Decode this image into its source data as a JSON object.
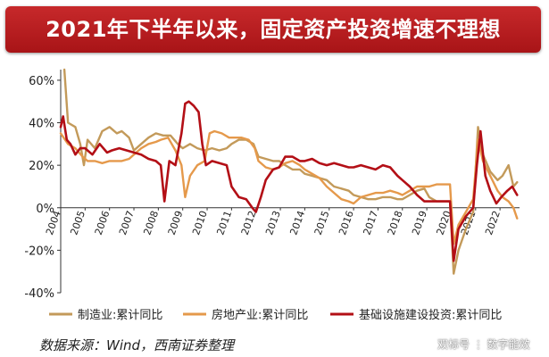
{
  "title": "2021年下半年以来，固定资产投资增速不理想",
  "source": "数据来源：Wind，西南证券整理",
  "watermark": "双标号 ⋮ 数字能效",
  "colors": {
    "title_bg": "#b81c1f",
    "manufacturing": "#c39a5a",
    "real_estate": "#e5994b",
    "infrastructure": "#b30f16"
  },
  "chart_data": {
    "type": "line",
    "title": "",
    "xlabel": "",
    "ylabel": "",
    "y_ticks": [
      "-40%",
      "-20%",
      "0%",
      "20%",
      "40%",
      "60%"
    ],
    "ylim": [
      -40,
      65
    ],
    "x_tick_labels": [
      "2004",
      "2005",
      "2006",
      "2007",
      "2008",
      "2009",
      "2010",
      "2011",
      "2012",
      "2013",
      "2014",
      "2015",
      "2016",
      "2017",
      "2018",
      "2019",
      "2020",
      "2021",
      "2022"
    ],
    "xlim": [
      2004,
      2022.8
    ],
    "grid": false,
    "legend_position": "bottom",
    "series": [
      {
        "name": "制造业:累计同比",
        "color": "#c39a5a",
        "points": [
          [
            2004.15,
            65
          ],
          [
            2004.3,
            40
          ],
          [
            2004.6,
            38
          ],
          [
            2004.8,
            30
          ],
          [
            2004.95,
            20
          ],
          [
            2005.1,
            32
          ],
          [
            2005.4,
            28
          ],
          [
            2005.7,
            36
          ],
          [
            2006.0,
            38
          ],
          [
            2006.3,
            35
          ],
          [
            2006.5,
            36
          ],
          [
            2006.8,
            33
          ],
          [
            2007.0,
            27
          ],
          [
            2007.3,
            30
          ],
          [
            2007.6,
            33
          ],
          [
            2007.9,
            35
          ],
          [
            2008.2,
            34
          ],
          [
            2008.5,
            34
          ],
          [
            2008.8,
            30
          ],
          [
            2009.0,
            28
          ],
          [
            2009.3,
            30
          ],
          [
            2009.6,
            28
          ],
          [
            2009.9,
            27
          ],
          [
            2010.2,
            28
          ],
          [
            2010.5,
            27
          ],
          [
            2010.8,
            28
          ],
          [
            2011.0,
            30
          ],
          [
            2011.3,
            32
          ],
          [
            2011.6,
            32
          ],
          [
            2011.9,
            30
          ],
          [
            2012.1,
            24
          ],
          [
            2012.4,
            23
          ],
          [
            2012.7,
            22
          ],
          [
            2012.95,
            22
          ],
          [
            2013.2,
            20
          ],
          [
            2013.5,
            18
          ],
          [
            2013.8,
            18
          ],
          [
            2014.0,
            16
          ],
          [
            2014.3,
            15
          ],
          [
            2014.6,
            14
          ],
          [
            2014.9,
            13
          ],
          [
            2015.2,
            10
          ],
          [
            2015.5,
            9
          ],
          [
            2015.8,
            8
          ],
          [
            2016.0,
            6
          ],
          [
            2016.3,
            5
          ],
          [
            2016.6,
            4
          ],
          [
            2016.9,
            4
          ],
          [
            2017.2,
            5
          ],
          [
            2017.5,
            5
          ],
          [
            2017.8,
            4
          ],
          [
            2018.0,
            4
          ],
          [
            2018.3,
            6
          ],
          [
            2018.6,
            8
          ],
          [
            2018.9,
            9
          ],
          [
            2019.1,
            5
          ],
          [
            2019.4,
            3
          ],
          [
            2019.7,
            3
          ],
          [
            2019.95,
            3
          ],
          [
            2020.1,
            -31
          ],
          [
            2020.3,
            -20
          ],
          [
            2020.6,
            -10
          ],
          [
            2020.9,
            -2
          ],
          [
            2021.1,
            38
          ],
          [
            2021.3,
            25
          ],
          [
            2021.6,
            17
          ],
          [
            2021.9,
            13
          ],
          [
            2022.1,
            15
          ],
          [
            2022.35,
            20
          ],
          [
            2022.55,
            10
          ],
          [
            2022.7,
            12
          ]
        ]
      },
      {
        "name": "房地产业:累计同比",
        "color": "#e5994b",
        "points": [
          [
            2004.0,
            35
          ],
          [
            2004.3,
            30
          ],
          [
            2004.6,
            28
          ],
          [
            2004.9,
            24
          ],
          [
            2005.1,
            22
          ],
          [
            2005.4,
            22
          ],
          [
            2005.7,
            21
          ],
          [
            2006.0,
            22
          ],
          [
            2006.3,
            22
          ],
          [
            2006.5,
            22
          ],
          [
            2006.8,
            23
          ],
          [
            2007.0,
            25
          ],
          [
            2007.3,
            28
          ],
          [
            2007.6,
            30
          ],
          [
            2007.9,
            31
          ],
          [
            2008.1,
            32
          ],
          [
            2008.4,
            33
          ],
          [
            2008.7,
            27
          ],
          [
            2008.95,
            20
          ],
          [
            2009.1,
            5
          ],
          [
            2009.3,
            15
          ],
          [
            2009.6,
            20
          ],
          [
            2009.9,
            22
          ],
          [
            2010.1,
            35
          ],
          [
            2010.3,
            36
          ],
          [
            2010.6,
            35
          ],
          [
            2010.9,
            33
          ],
          [
            2011.1,
            33
          ],
          [
            2011.4,
            33
          ],
          [
            2011.7,
            32
          ],
          [
            2011.95,
            28
          ],
          [
            2012.1,
            22
          ],
          [
            2012.4,
            19
          ],
          [
            2012.7,
            18
          ],
          [
            2012.95,
            19
          ],
          [
            2013.2,
            21
          ],
          [
            2013.5,
            22
          ],
          [
            2013.8,
            20
          ],
          [
            2014.0,
            18
          ],
          [
            2014.3,
            16
          ],
          [
            2014.6,
            14
          ],
          [
            2014.9,
            10
          ],
          [
            2015.2,
            7
          ],
          [
            2015.5,
            4
          ],
          [
            2015.8,
            3
          ],
          [
            2016.0,
            2
          ],
          [
            2016.3,
            5
          ],
          [
            2016.6,
            6
          ],
          [
            2016.9,
            7
          ],
          [
            2017.2,
            7
          ],
          [
            2017.5,
            8
          ],
          [
            2017.8,
            7
          ],
          [
            2018.0,
            6
          ],
          [
            2018.3,
            8
          ],
          [
            2018.6,
            10
          ],
          [
            2018.9,
            10
          ],
          [
            2019.1,
            10
          ],
          [
            2019.4,
            11
          ],
          [
            2019.7,
            11
          ],
          [
            2019.95,
            11
          ],
          [
            2020.1,
            -17
          ],
          [
            2020.3,
            -8
          ],
          [
            2020.6,
            -2
          ],
          [
            2020.9,
            4
          ],
          [
            2021.1,
            32
          ],
          [
            2021.3,
            22
          ],
          [
            2021.6,
            15
          ],
          [
            2021.9,
            8
          ],
          [
            2022.1,
            5
          ],
          [
            2022.35,
            3
          ],
          [
            2022.55,
            0
          ],
          [
            2022.7,
            -5
          ]
        ]
      },
      {
        "name": "基础设施建设投资:累计同比",
        "color": "#b30f16",
        "points": [
          [
            2004.0,
            38
          ],
          [
            2004.1,
            43
          ],
          [
            2004.25,
            32
          ],
          [
            2004.4,
            30
          ],
          [
            2004.6,
            25
          ],
          [
            2004.8,
            28
          ],
          [
            2005.0,
            28
          ],
          [
            2005.3,
            25
          ],
          [
            2005.6,
            30
          ],
          [
            2005.9,
            26
          ],
          [
            2006.1,
            27
          ],
          [
            2006.4,
            28
          ],
          [
            2006.7,
            27
          ],
          [
            2007.0,
            26
          ],
          [
            2007.3,
            25
          ],
          [
            2007.6,
            23
          ],
          [
            2007.9,
            22
          ],
          [
            2008.1,
            20
          ],
          [
            2008.25,
            3
          ],
          [
            2008.45,
            22
          ],
          [
            2008.7,
            20
          ],
          [
            2008.95,
            35
          ],
          [
            2009.1,
            49
          ],
          [
            2009.25,
            50
          ],
          [
            2009.45,
            48
          ],
          [
            2009.65,
            45
          ],
          [
            2009.8,
            30
          ],
          [
            2009.95,
            20
          ],
          [
            2010.2,
            22
          ],
          [
            2010.5,
            21
          ],
          [
            2010.8,
            20
          ],
          [
            2011.0,
            10
          ],
          [
            2011.3,
            5
          ],
          [
            2011.6,
            4
          ],
          [
            2011.85,
            0
          ],
          [
            2012.0,
            -2
          ],
          [
            2012.2,
            5
          ],
          [
            2012.4,
            13
          ],
          [
            2012.7,
            18
          ],
          [
            2012.95,
            19
          ],
          [
            2013.2,
            24
          ],
          [
            2013.5,
            24
          ],
          [
            2013.8,
            22
          ],
          [
            2014.0,
            22
          ],
          [
            2014.3,
            23
          ],
          [
            2014.6,
            21
          ],
          [
            2014.9,
            20
          ],
          [
            2015.2,
            21
          ],
          [
            2015.5,
            20
          ],
          [
            2015.8,
            19
          ],
          [
            2016.0,
            19
          ],
          [
            2016.3,
            20
          ],
          [
            2016.6,
            19
          ],
          [
            2016.9,
            18
          ],
          [
            2017.2,
            20
          ],
          [
            2017.5,
            19
          ],
          [
            2017.8,
            15
          ],
          [
            2018.0,
            13
          ],
          [
            2018.3,
            10
          ],
          [
            2018.6,
            6
          ],
          [
            2018.9,
            3
          ],
          [
            2019.1,
            3
          ],
          [
            2019.4,
            3
          ],
          [
            2019.7,
            3
          ],
          [
            2019.95,
            3
          ],
          [
            2020.1,
            -25
          ],
          [
            2020.3,
            -10
          ],
          [
            2020.6,
            -4
          ],
          [
            2020.9,
            0
          ],
          [
            2021.05,
            20
          ],
          [
            2021.2,
            36
          ],
          [
            2021.4,
            15
          ],
          [
            2021.6,
            8
          ],
          [
            2021.85,
            2
          ],
          [
            2022.05,
            5
          ],
          [
            2022.3,
            8
          ],
          [
            2022.5,
            10
          ],
          [
            2022.7,
            6
          ]
        ]
      }
    ]
  }
}
